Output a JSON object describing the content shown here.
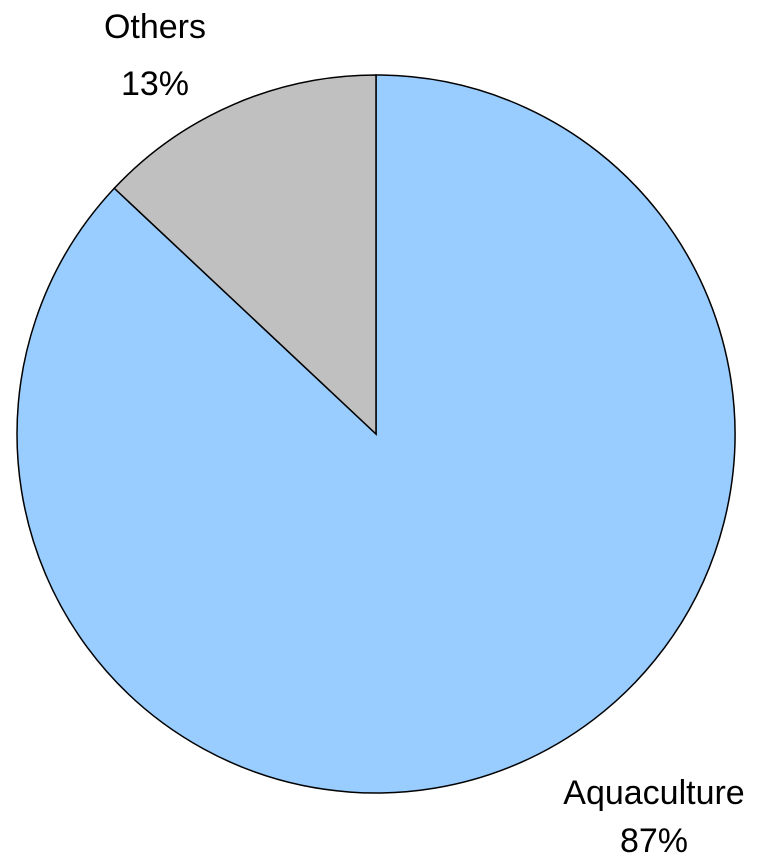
{
  "chart_data": {
    "type": "pie",
    "slices": [
      {
        "label": "Aquaculture",
        "value": 87,
        "value_label": "87%",
        "color": "#99CCFF"
      },
      {
        "label": "Others",
        "value": 13,
        "value_label": "13%",
        "color": "#C0C0C0"
      }
    ],
    "start_angle_deg": 0,
    "direction": "clockwise",
    "stroke_color": "#000000"
  }
}
